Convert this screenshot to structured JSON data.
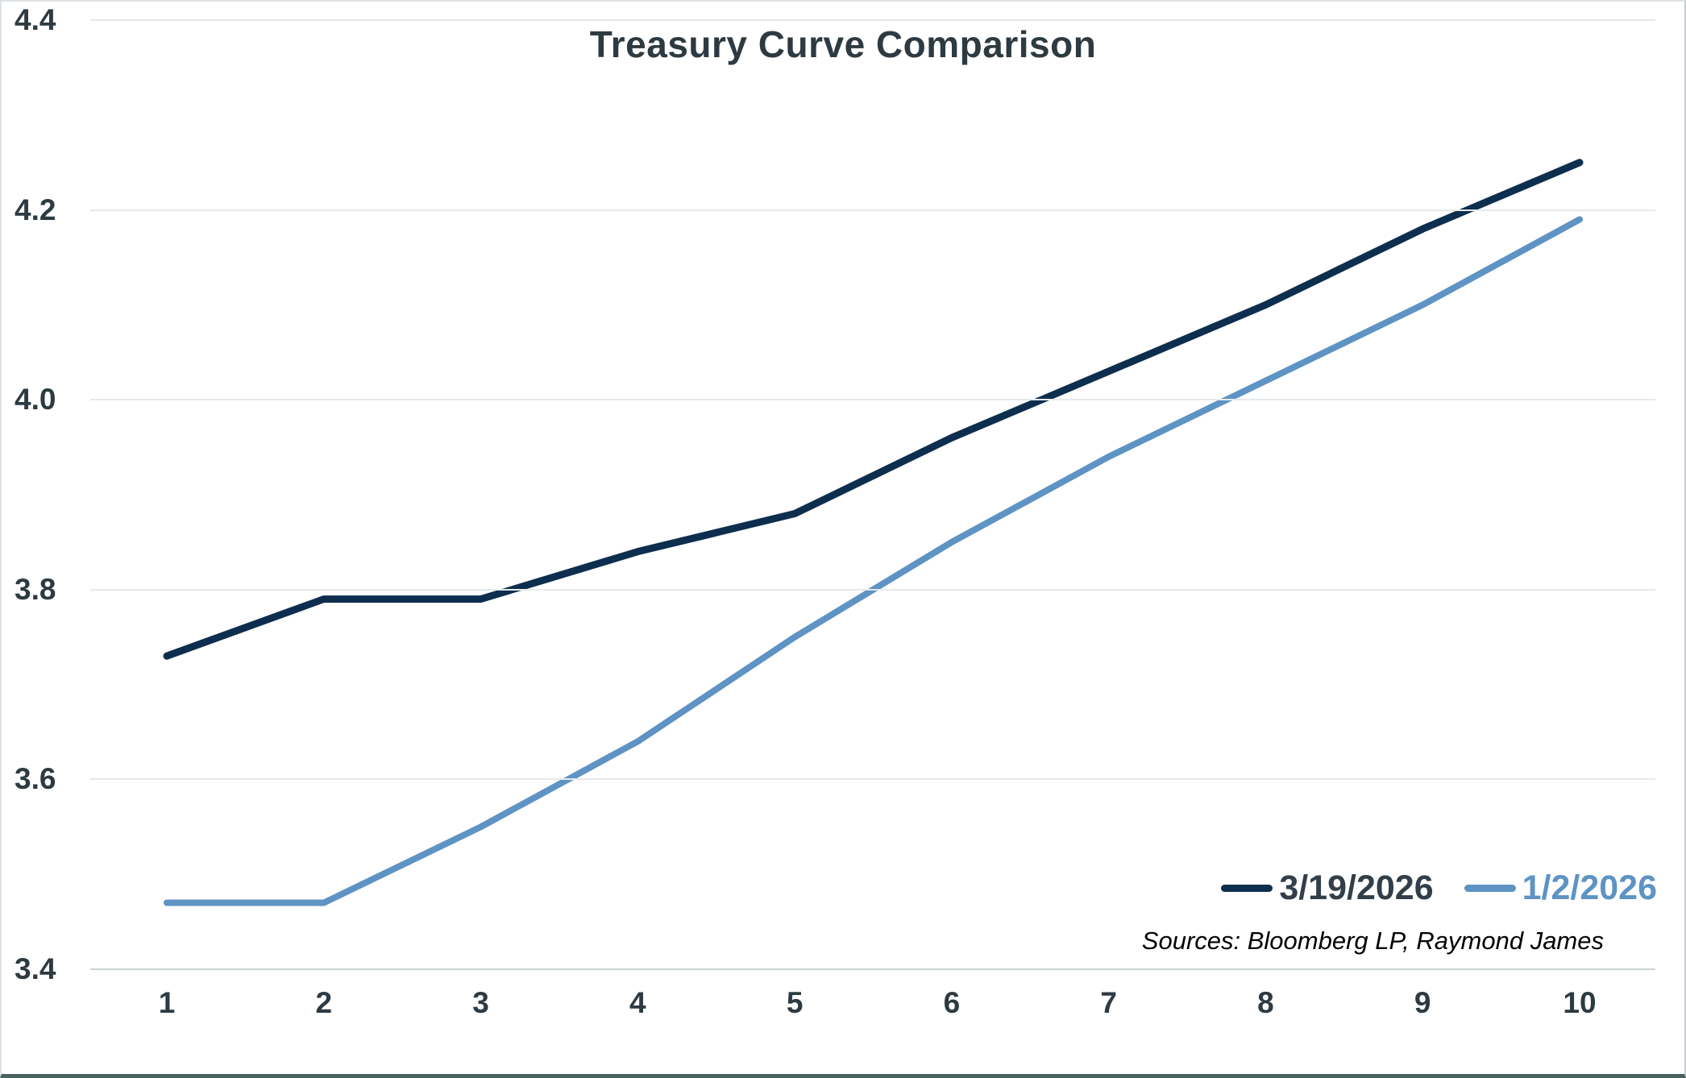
{
  "page": {
    "background": "#ffffff",
    "frame_border_color": "#dde2e5",
    "bottom_bar_color": "#4a625e"
  },
  "styles": {
    "title_color": "#2d3a42",
    "tick_color": "#2d3a42",
    "gridline_color": "#e4e9ec",
    "axisline_color": "#ccd3d7",
    "source_color": "#000000"
  },
  "chart_data": {
    "type": "line",
    "title": "Treasury Curve Comparison",
    "xlabel": "",
    "ylabel": "",
    "x": [
      1,
      2,
      3,
      4,
      5,
      6,
      7,
      8,
      9,
      10
    ],
    "ylim": [
      3.4,
      4.4
    ],
    "yticks": [
      3.4,
      3.6,
      3.8,
      4.0,
      4.2,
      4.4
    ],
    "ytick_decimals": 1,
    "grid": "horizontal",
    "legend_position": "inside-bottom-right",
    "series": [
      {
        "name": "3/19/2026",
        "color": "#0d2e4e",
        "legend_text_color": "#323e49",
        "stroke_width": 9,
        "values": [
          3.73,
          3.79,
          3.79,
          3.84,
          3.88,
          3.96,
          4.03,
          4.1,
          4.18,
          4.25
        ]
      },
      {
        "name": "1/2/2026",
        "color": "#5e93c4",
        "legend_text_color": "#5e93c4",
        "stroke_width": 8,
        "values": [
          3.47,
          3.47,
          3.55,
          3.64,
          3.75,
          3.85,
          3.94,
          4.02,
          4.1,
          4.19
        ]
      }
    ],
    "source_note": "Sources: Bloomberg LP, Raymond James"
  }
}
